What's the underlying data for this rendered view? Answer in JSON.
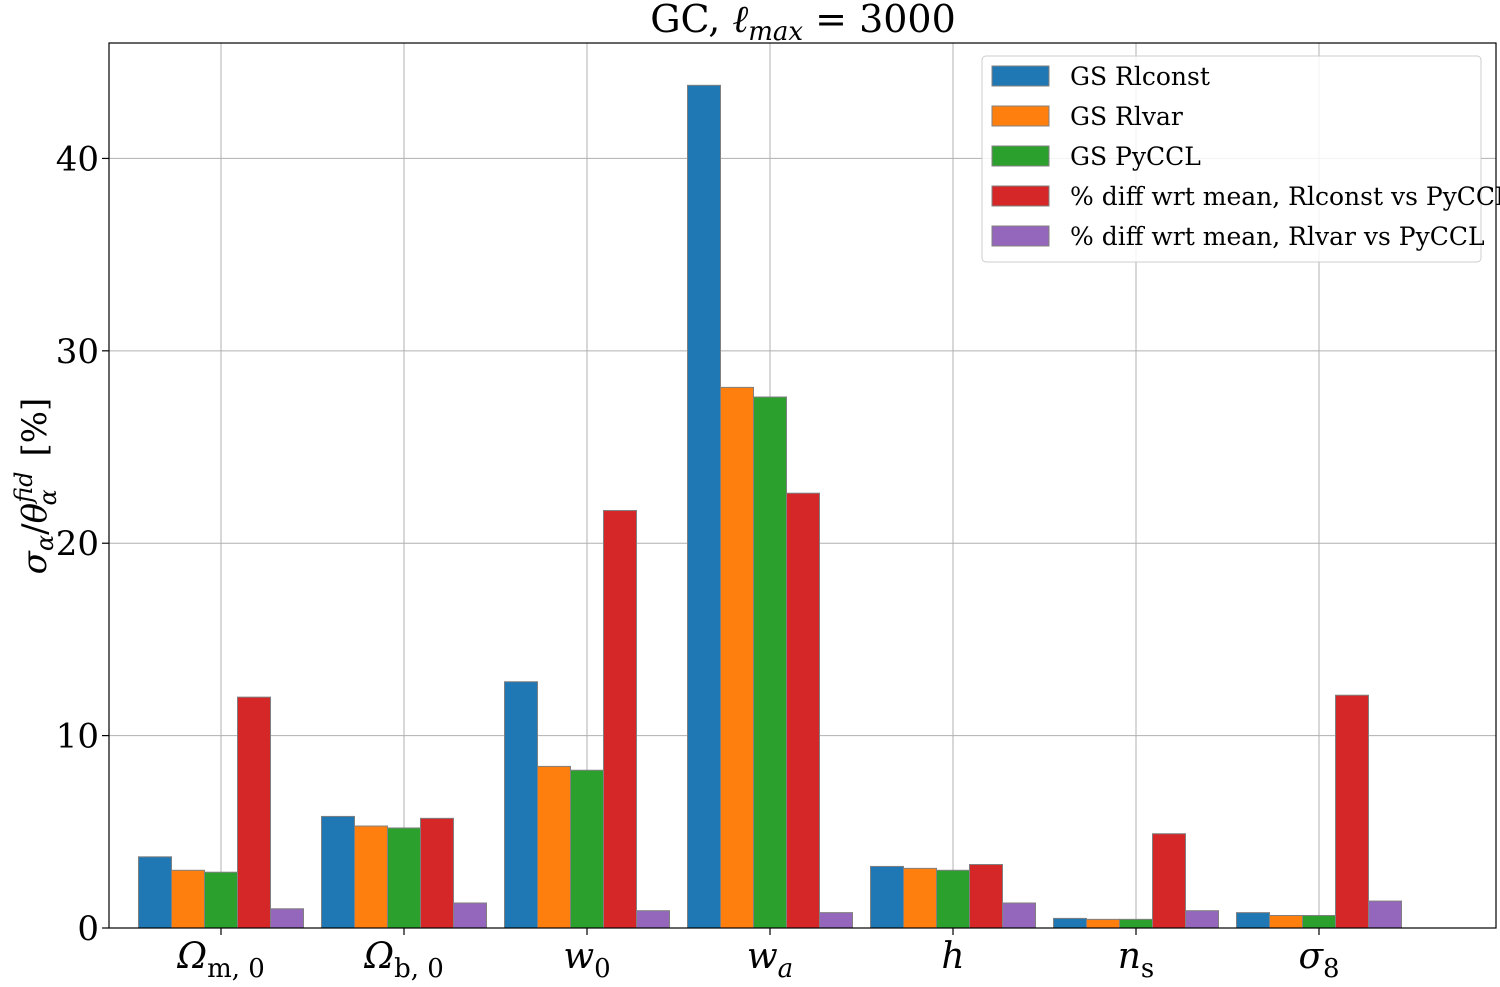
{
  "chart_data": {
    "type": "bar",
    "title": "GC, ℓ max = 3000",
    "title_parts": {
      "prefix": "GC, ",
      "ell": "ℓ",
      "sub": "max",
      "suffix": " = 3000"
    },
    "ylabel": "σα/θα fid [%]",
    "ylabel_parts": {
      "num": "σ",
      "num_sub": "α",
      "slash": "/",
      "den": "θ",
      "den_sub": "α",
      "den_sup": "fid",
      "unit": " [%]"
    },
    "ylim": [
      0,
      46
    ],
    "yticks": [
      0,
      10,
      20,
      30,
      40
    ],
    "grid": true,
    "legend_position": "top-right",
    "categories": [
      {
        "base": "Ω",
        "sub": "m, 0",
        "italic": false
      },
      {
        "base": "Ω",
        "sub": "b, 0",
        "italic": false
      },
      {
        "base": "w",
        "sub": "0",
        "italic": true
      },
      {
        "base": "w",
        "sub": "a",
        "italic": true
      },
      {
        "base": "h",
        "sub": "",
        "italic": true
      },
      {
        "base": "n",
        "sub": "s",
        "italic": true
      },
      {
        "base": "σ",
        "sub": "8",
        "italic": true
      }
    ],
    "series": [
      {
        "name": "GS Rlconst",
        "color": "#1f77b4",
        "values": [
          3.7,
          5.8,
          12.8,
          43.8,
          3.2,
          0.5,
          0.8
        ]
      },
      {
        "name": "GS Rlvar",
        "color": "#ff7f0e",
        "values": [
          3.0,
          5.3,
          8.4,
          28.1,
          3.1,
          0.45,
          0.65
        ]
      },
      {
        "name": "GS PyCCL",
        "color": "#2ca02c",
        "values": [
          2.9,
          5.2,
          8.2,
          27.6,
          3.0,
          0.45,
          0.65
        ]
      },
      {
        "name": "% diff wrt mean, Rlconst vs PyCCL",
        "color": "#d62728",
        "values": [
          12.0,
          5.7,
          21.7,
          22.6,
          3.3,
          4.9,
          12.1
        ]
      },
      {
        "name": "% diff wrt mean, Rlvar vs PyCCL",
        "color": "#9467bd",
        "values": [
          1.0,
          1.3,
          0.9,
          0.8,
          1.3,
          0.9,
          1.4
        ]
      }
    ]
  }
}
